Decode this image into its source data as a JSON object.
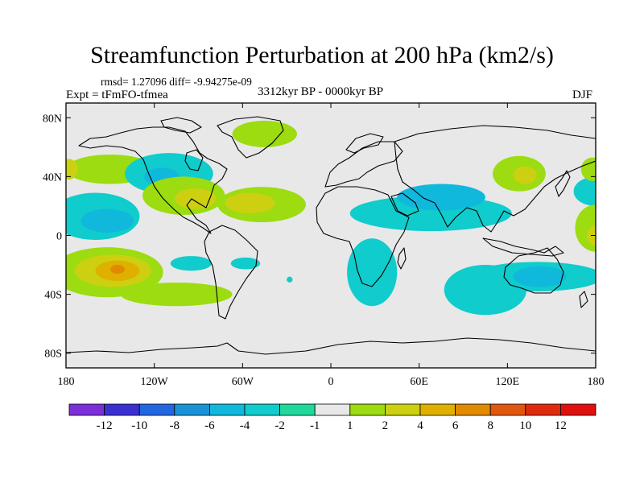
{
  "title": "Streamfunction Perturbation at 200 hPa (km2/s)",
  "stats": "rmsd= 1.27096 diff= -9.94275e-09",
  "experiment": "Expt = tFmFO-tfmea",
  "period": "3312kyr BP - 0000kyr BP",
  "season": "DJF",
  "projection": "cylindrical equidistant, longitude 180 to 180, latitude 90S to 90N",
  "axes": {
    "lat_ticks": [
      {
        "value": 80,
        "label": "80N"
      },
      {
        "value": 40,
        "label": "40N"
      },
      {
        "value": 0,
        "label": "0"
      },
      {
        "value": -40,
        "label": "40S"
      },
      {
        "value": -80,
        "label": "80S"
      }
    ],
    "lon_ticks": [
      {
        "value": -180,
        "label": "180"
      },
      {
        "value": -120,
        "label": "120W"
      },
      {
        "value": -60,
        "label": "60W"
      },
      {
        "value": 0,
        "label": "0"
      },
      {
        "value": 60,
        "label": "60E"
      },
      {
        "value": 120,
        "label": "120E"
      },
      {
        "value": 180,
        "label": "180"
      }
    ]
  },
  "colorbar": {
    "labels": [
      "-12",
      "-10",
      "-8",
      "-6",
      "-4",
      "-2",
      "-1",
      "1",
      "2",
      "4",
      "6",
      "8",
      "10",
      "12"
    ],
    "colors": [
      "#7b2fd8",
      "#3a2fd0",
      "#2266e0",
      "#1a92d8",
      "#10b8dc",
      "#10cccc",
      "#20d89c",
      "#e8e8e8",
      "#9cdc10",
      "#ccd010",
      "#e0b000",
      "#e08a00",
      "#e05810",
      "#e02a10",
      "#e01010"
    ]
  },
  "chart_data": {
    "type": "heatmap",
    "variable": "Streamfunction Perturbation at 200 hPa (km2/s)",
    "neutral_range": [
      -1,
      1
    ],
    "neutral_color": "#e8e8e8",
    "anomalies": [
      {
        "lon": -150,
        "lat": 45,
        "rx": 30,
        "ry": 10,
        "level": 2
      },
      {
        "lon": -178,
        "lat": 45,
        "rx": 6,
        "ry": 7,
        "level": 4
      },
      {
        "lon": -110,
        "lat": 42,
        "rx": 30,
        "ry": 14,
        "level": -2
      },
      {
        "lon": -115,
        "lat": 40,
        "rx": 12,
        "ry": 6,
        "level": -4
      },
      {
        "lon": -45,
        "lat": 69,
        "rx": 22,
        "ry": 9,
        "level": 2
      },
      {
        "lon": -160,
        "lat": 13,
        "rx": 30,
        "ry": 16,
        "level": -2
      },
      {
        "lon": -152,
        "lat": 10,
        "rx": 18,
        "ry": 8,
        "level": -4
      },
      {
        "lon": -100,
        "lat": 27,
        "rx": 28,
        "ry": 13,
        "level": 2
      },
      {
        "lon": -92,
        "lat": 25,
        "rx": 14,
        "ry": 7,
        "level": 4
      },
      {
        "lon": -47,
        "lat": 21,
        "rx": 30,
        "ry": 12,
        "level": 2
      },
      {
        "lon": -55,
        "lat": 22,
        "rx": 17,
        "ry": 7,
        "level": 4
      },
      {
        "lon": -152,
        "lat": -25,
        "rx": 38,
        "ry": 17,
        "level": 2
      },
      {
        "lon": -148,
        "lat": -24,
        "rx": 26,
        "ry": 11,
        "level": 4
      },
      {
        "lon": -145,
        "lat": -24,
        "rx": 15,
        "ry": 7,
        "level": 6
      },
      {
        "lon": -145,
        "lat": -23,
        "rx": 5,
        "ry": 3,
        "level": 8
      },
      {
        "lon": -105,
        "lat": -40,
        "rx": 38,
        "ry": 8,
        "level": 2
      },
      {
        "lon": -95,
        "lat": -19,
        "rx": 14,
        "ry": 5,
        "level": -2
      },
      {
        "lon": -58,
        "lat": -19,
        "rx": 10,
        "ry": 4,
        "level": -2
      },
      {
        "lon": -28,
        "lat": -30,
        "rx": 2,
        "ry": 2,
        "level": -2
      },
      {
        "lon": 68,
        "lat": 15,
        "rx": 55,
        "ry": 12,
        "level": -2
      },
      {
        "lon": 75,
        "lat": 26,
        "rx": 30,
        "ry": 9,
        "level": -4
      },
      {
        "lon": 28,
        "lat": -25,
        "rx": 17,
        "ry": 23,
        "level": -2
      },
      {
        "lon": 105,
        "lat": -37,
        "rx": 28,
        "ry": 17,
        "level": -2
      },
      {
        "lon": 140,
        "lat": -28,
        "rx": 45,
        "ry": 10,
        "level": -2
      },
      {
        "lon": 142,
        "lat": -28,
        "rx": 18,
        "ry": 7,
        "level": -4
      },
      {
        "lon": 128,
        "lat": 42,
        "rx": 18,
        "ry": 12,
        "level": 2
      },
      {
        "lon": 132,
        "lat": 41,
        "rx": 8,
        "ry": 6,
        "level": 4
      },
      {
        "lon": 180,
        "lat": 30,
        "rx": 15,
        "ry": 10,
        "level": -2
      },
      {
        "lon": 178,
        "lat": 45,
        "rx": 8,
        "ry": 8,
        "level": 2
      },
      {
        "lon": 180,
        "lat": 5,
        "rx": 14,
        "ry": 16,
        "level": 2
      },
      {
        "lon": 180,
        "lat": 0,
        "rx": 6,
        "ry": 7,
        "level": 4
      }
    ]
  }
}
